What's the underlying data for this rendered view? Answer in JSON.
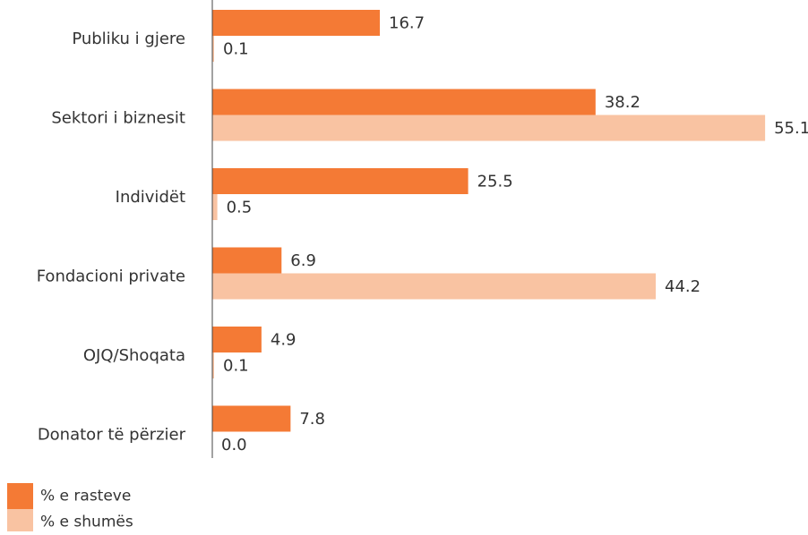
{
  "chart_data": {
    "type": "bar",
    "orientation": "horizontal",
    "categories": [
      "Publiku i gjere",
      "Sektori i biznesit",
      "Individët",
      "Fondacioni private",
      "OJQ/Shoqata",
      "Donator të përzier"
    ],
    "series": [
      {
        "name": "% e rasteve",
        "color": "#f47a35",
        "values": [
          16.7,
          38.2,
          25.5,
          6.9,
          4.9,
          7.8
        ],
        "labels": [
          "16.7",
          "38.2",
          "25.5",
          "6.9",
          "4.9",
          "7.8"
        ]
      },
      {
        "name": "% e shumës",
        "color": "#f9c3a2",
        "values": [
          0.1,
          55.1,
          0.5,
          44.2,
          0.1,
          0.0
        ],
        "labels": [
          "0.1",
          "55.1",
          "0.5",
          "44.2",
          "0.1",
          "0.0"
        ]
      }
    ],
    "xlim": [
      0,
      60
    ],
    "grid": false,
    "legend_position": "bottom-left",
    "text_color": "#333333",
    "axis_color": "#444444"
  }
}
